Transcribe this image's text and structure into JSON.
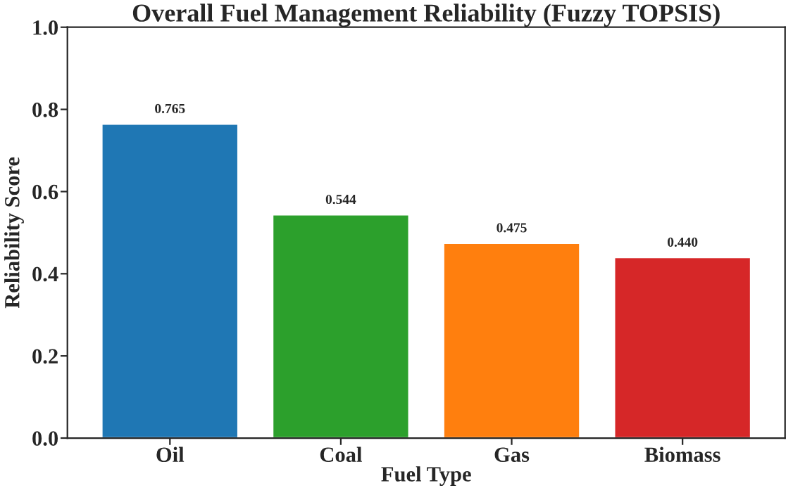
{
  "chart_data": {
    "type": "bar",
    "title": "Overall Fuel Management Reliability (Fuzzy TOPSIS)",
    "xlabel": "Fuel Type",
    "ylabel": "Reliability Score",
    "categories": [
      "Oil",
      "Coal",
      "Gas",
      "Biomass"
    ],
    "values": [
      0.765,
      0.544,
      0.475,
      0.44
    ],
    "value_labels": [
      "0.765",
      "0.544",
      "0.475",
      "0.440"
    ],
    "colors": [
      "#1f77b4",
      "#2ca02c",
      "#ff7f0e",
      "#d62728"
    ],
    "ylim": [
      0,
      1
    ],
    "yticks": [
      {
        "value": 0,
        "label": "0.0"
      },
      {
        "value": 0.2,
        "label": "0.2"
      },
      {
        "value": 0.4,
        "label": "0.4"
      },
      {
        "value": 0.6,
        "label": "0.6"
      },
      {
        "value": 0.8,
        "label": "0.8"
      },
      {
        "value": 1,
        "label": "1.0"
      }
    ]
  }
}
